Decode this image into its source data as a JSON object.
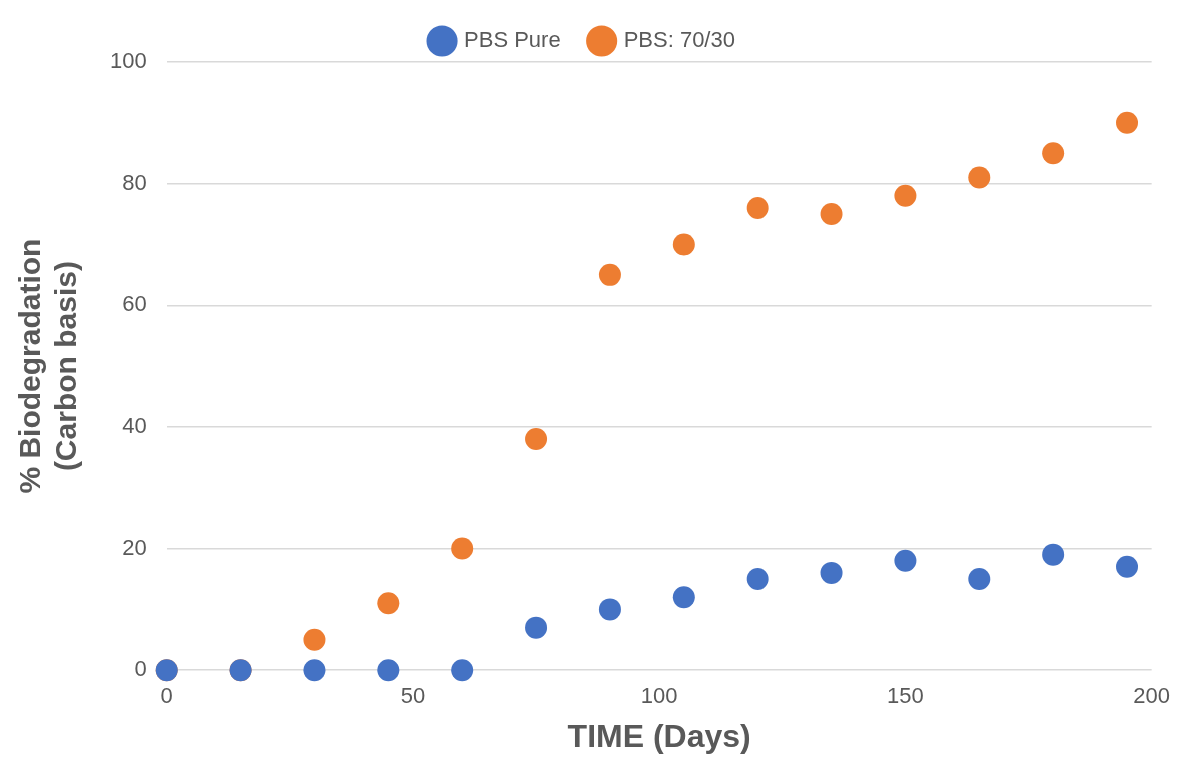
{
  "chart_data": {
    "type": "scatter",
    "xlabel": "TIME (Days)",
    "ylabel": "% Biodegradation (Carbon basis)",
    "xlim": [
      0,
      200
    ],
    "xticks": [
      0,
      50,
      100,
      150,
      200
    ],
    "ylim": [
      0,
      100
    ],
    "yticks": [
      0,
      20,
      40,
      60,
      80,
      100
    ],
    "grid": "y",
    "legend": "top",
    "marker": "circle",
    "series": [
      {
        "name": "PBS Pure",
        "color": "#4472c4",
        "x": [
          0,
          15,
          30,
          45,
          60,
          75,
          90,
          105,
          120,
          135,
          150,
          165,
          180,
          195
        ],
        "values": [
          0,
          0,
          0,
          0,
          0,
          7,
          10,
          12,
          15,
          16,
          18,
          15,
          19,
          17
        ]
      },
      {
        "name": "PBS: 70/30",
        "color": "#ed7d31",
        "x": [
          0,
          15,
          30,
          45,
          60,
          75,
          90,
          105,
          120,
          135,
          150,
          165,
          180,
          195
        ],
        "values": [
          0,
          0,
          5,
          11,
          20,
          38,
          65,
          70,
          76,
          75,
          78,
          81,
          85,
          90
        ]
      }
    ]
  }
}
